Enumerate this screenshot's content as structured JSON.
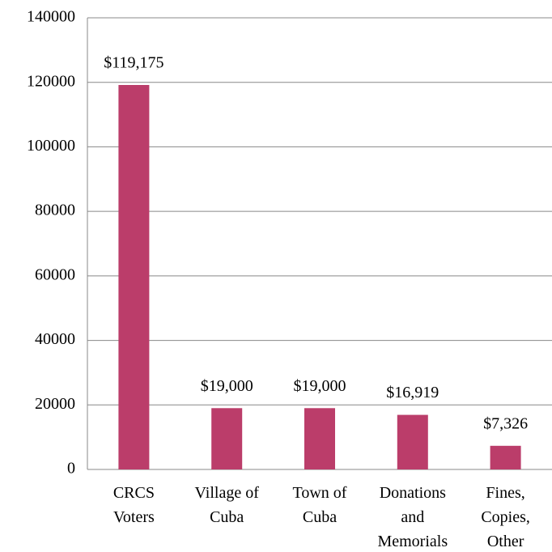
{
  "chart_data": {
    "type": "bar",
    "categories": [
      "CRCS\nVoters",
      "Village of\nCuba",
      "Town of\nCuba",
      "Donations\nand\nMemorials",
      "Fines,\nCopies,\nOther"
    ],
    "values": [
      119175,
      19000,
      19000,
      16919,
      7326
    ],
    "value_labels": [
      "$119,175",
      "$19,000",
      "$19,000",
      "$16,919",
      "$7,326"
    ],
    "color": "#bb3d6a",
    "ylim": [
      0,
      140000
    ],
    "yticks": [
      0,
      20000,
      40000,
      60000,
      80000,
      100000,
      120000,
      140000
    ],
    "grid": true
  }
}
